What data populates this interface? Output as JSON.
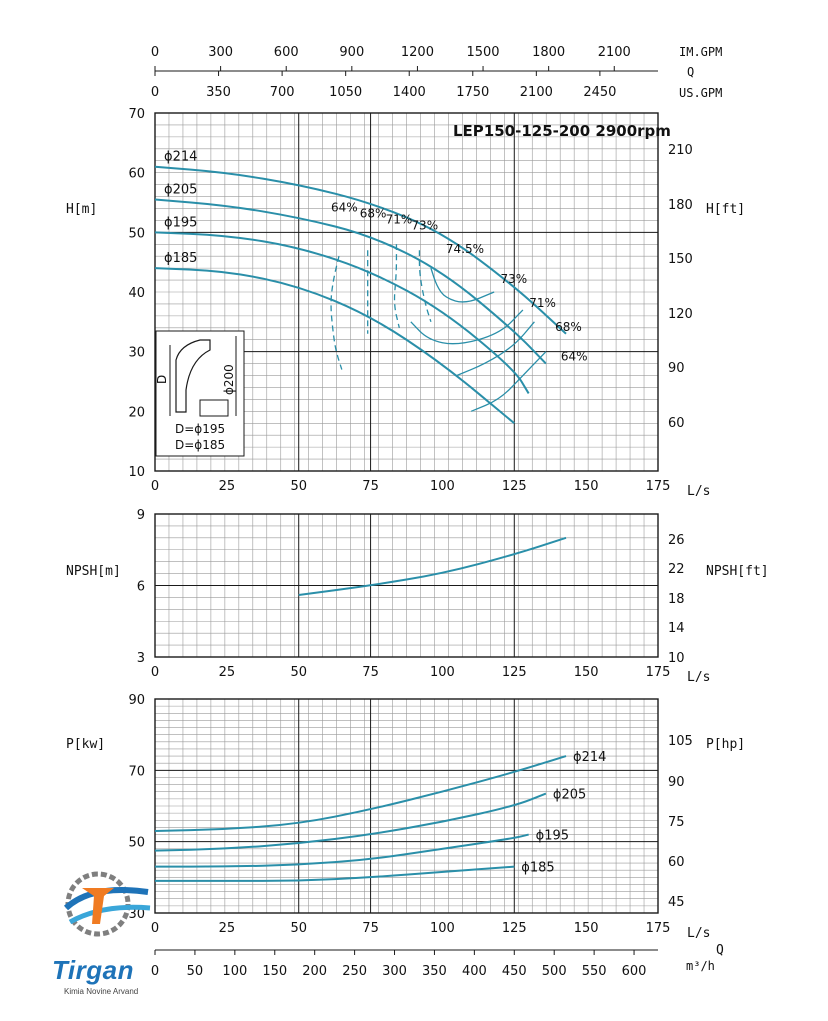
{
  "colors": {
    "curve": "#2a8fa9",
    "grid_minor": "#9a9a9a",
    "grid_major": "#1a1a1a",
    "text": "#111111"
  },
  "top_scales": [
    {
      "label": "IM.GPM",
      "ticks": [
        "0",
        "300",
        "600",
        "900",
        "1200",
        "1500",
        "1800",
        "2100"
      ],
      "values": [
        0,
        300,
        600,
        900,
        1200,
        1500,
        1800,
        2100
      ],
      "max": 2300
    },
    {
      "label": "US.GPM",
      "ticks": [
        "0",
        "350",
        "700",
        "1050",
        "1400",
        "1750",
        "2100",
        "2450"
      ],
      "values": [
        0,
        350,
        700,
        1050,
        1400,
        1750,
        2100,
        2450
      ],
      "max": 2770
    },
    {
      "label": "Q"
    }
  ],
  "bottom_scale": {
    "q_label": "Q",
    "unit": "m³/h",
    "ticks": [
      "0",
      "50",
      "100",
      "150",
      "200",
      "250",
      "300",
      "350",
      "400",
      "450",
      "500",
      "550",
      "600"
    ]
  },
  "chart_data": [
    {
      "type": "line",
      "title": "LEP150-125-200 2900rpm",
      "xlabel": "L/s",
      "ylabel": "H[m]",
      "ylabel_right": "H[ft]",
      "xlim": [
        0,
        175
      ],
      "ylim": [
        10,
        70
      ],
      "xticks": [
        "0",
        "25",
        "50",
        "75",
        "100",
        "125",
        "150",
        "175"
      ],
      "yticks": [
        "10",
        "20",
        "30",
        "40",
        "50",
        "60",
        "70"
      ],
      "yticks_right": [
        "60",
        "90",
        "120",
        "150",
        "180",
        "210"
      ],
      "series": [
        {
          "name": "ϕ214",
          "x": [
            0,
            25,
            50,
            75,
            100,
            125,
            143
          ],
          "y": [
            61,
            60,
            58,
            55,
            50,
            41,
            33
          ]
        },
        {
          "name": "ϕ205",
          "x": [
            0,
            25,
            50,
            75,
            100,
            125,
            136
          ],
          "y": [
            55.5,
            54.5,
            52.5,
            49.5,
            43.5,
            33.5,
            28
          ]
        },
        {
          "name": "ϕ195",
          "x": [
            0,
            25,
            50,
            75,
            100,
            125,
            130
          ],
          "y": [
            50,
            49.5,
            47.5,
            43.5,
            37,
            27,
            23
          ]
        },
        {
          "name": "ϕ185",
          "x": [
            0,
            25,
            50,
            75,
            100,
            125
          ],
          "y": [
            44,
            43.5,
            41,
            36,
            28,
            18
          ]
        }
      ],
      "efficiency_labels": [
        "64%",
        "68%",
        "71%",
        "73%",
        "74.5%",
        "73%",
        "71%",
        "68%",
        "64%"
      ],
      "efficiency_curves": [
        {
          "name": "64%",
          "x": [
            64,
            62,
            61,
            62,
            63,
            65
          ],
          "y": [
            46,
            42,
            38,
            33,
            30,
            27
          ]
        },
        {
          "name": "68%",
          "x": [
            74,
            74,
            74,
            74
          ],
          "y": [
            47,
            42,
            37,
            33
          ]
        },
        {
          "name": "71%",
          "x": [
            84,
            84,
            83,
            85
          ],
          "y": [
            48,
            43,
            38,
            34
          ]
        },
        {
          "name": "73%",
          "x": [
            92,
            92,
            94,
            96
          ],
          "y": [
            47,
            43,
            38,
            35
          ]
        },
        {
          "name": "74.5%",
          "x": [
            96,
            98,
            101,
            108,
            118
          ],
          "y": [
            44,
            41,
            39,
            38,
            40
          ]
        },
        {
          "name": "71% right",
          "x": [
            89,
            95,
            105,
            120,
            128
          ],
          "y": [
            35,
            32,
            31,
            33,
            37
          ]
        },
        {
          "name": "68% right",
          "x": [
            105,
            115,
            125,
            132
          ],
          "y": [
            26,
            28,
            31,
            35
          ]
        },
        {
          "name": "64% right",
          "x": [
            110,
            120,
            128,
            136
          ],
          "y": [
            20,
            22,
            26,
            30
          ]
        }
      ],
      "inset": {
        "labels": [
          "D",
          "ϕ200",
          "D=ϕ195",
          "D=ϕ185"
        ]
      }
    },
    {
      "type": "line",
      "xlabel": "L/s",
      "ylabel": "NPSH[m]",
      "ylabel_right": "NPSH[ft]",
      "xlim": [
        0,
        175
      ],
      "ylim": [
        3,
        9
      ],
      "xticks": [
        "0",
        "25",
        "50",
        "75",
        "100",
        "125",
        "150",
        "175"
      ],
      "yticks": [
        "3",
        "6",
        "9"
      ],
      "yticks_right": [
        "10",
        "14",
        "18",
        "22",
        "26"
      ],
      "series": [
        {
          "x": [
            50,
            75,
            100,
            125,
            143
          ],
          "y": [
            5.6,
            6.0,
            6.5,
            7.3,
            8.0
          ]
        }
      ]
    },
    {
      "type": "line",
      "xlabel": "L/s",
      "ylabel": "P[kw]",
      "ylabel_right": "P[hp]",
      "xlim": [
        0,
        175
      ],
      "ylim": [
        30,
        90
      ],
      "xticks": [
        "0",
        "25",
        "50",
        "75",
        "100",
        "125",
        "150",
        "175"
      ],
      "yticks": [
        "30",
        "50",
        "70",
        "90"
      ],
      "yticks_right": [
        "45",
        "60",
        "75",
        "90",
        "105"
      ],
      "series": [
        {
          "name": "ϕ214",
          "x": [
            0,
            25,
            50,
            75,
            100,
            125,
            143
          ],
          "y": [
            53,
            53.5,
            55,
            59,
            64,
            69.5,
            74
          ]
        },
        {
          "name": "ϕ205",
          "x": [
            0,
            25,
            50,
            75,
            100,
            125,
            136
          ],
          "y": [
            47.5,
            48,
            49.5,
            52,
            55.5,
            60,
            63.5
          ]
        },
        {
          "name": "ϕ195",
          "x": [
            0,
            25,
            50,
            75,
            100,
            125,
            130
          ],
          "y": [
            43,
            43,
            43.5,
            45,
            48,
            51,
            52
          ]
        },
        {
          "name": "ϕ185",
          "x": [
            0,
            25,
            50,
            75,
            100,
            125
          ],
          "y": [
            39,
            39,
            39,
            40,
            41.5,
            43
          ]
        }
      ]
    }
  ],
  "logo": {
    "name": "Tirgan",
    "subtitle": "Kimia Novine Arvand"
  }
}
